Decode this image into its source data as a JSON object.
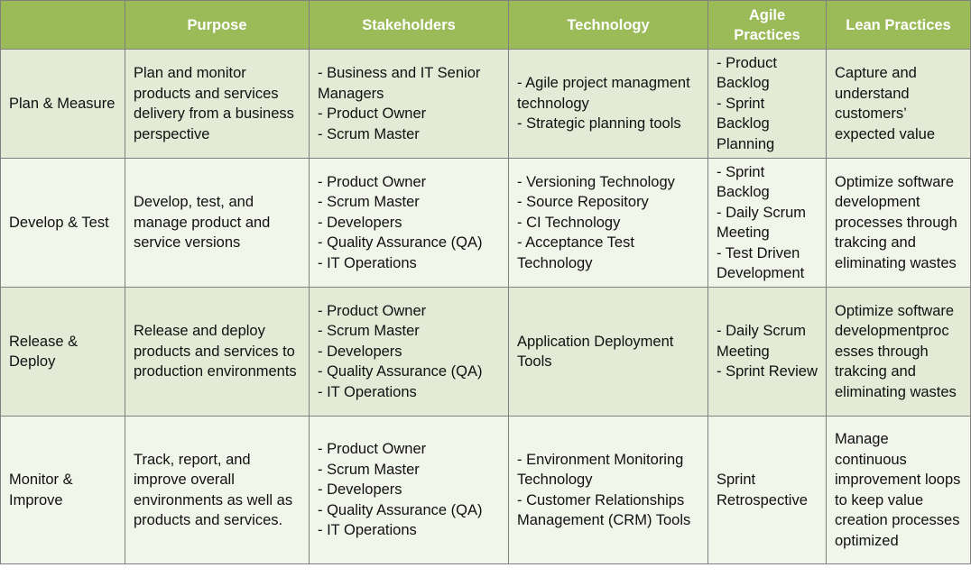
{
  "headers": [
    "",
    "Purpose",
    "Stakeholders",
    "Technology",
    "Agile Practices",
    "Lean Practices"
  ],
  "rows": [
    {
      "phase": "Plan & Measure",
      "purpose": "Plan and monitor products and services delivery from a business perspective",
      "stakeholders": [
        "- Business and IT Senior Managers",
        "- Product Owner",
        "- Scrum Master"
      ],
      "technology": [
        "- Agile project managment technology",
        "- Strategic planning tools"
      ],
      "agile": [
        "- Product Backlog",
        "- Sprint Backlog Planning"
      ],
      "lean": "Capture and understand customers’ expected value"
    },
    {
      "phase": "Develop & Test",
      "purpose": "Develop, test, and manage product and service versions",
      "stakeholders": [
        "- Product Owner",
        "- Scrum Master",
        "- Developers",
        "- Quality Assurance (QA)",
        "- IT Operations"
      ],
      "technology": [
        "- Versioning Technology",
        "- Source Repository",
        "- CI Technology",
        "- Acceptance Test Technology"
      ],
      "agile": [
        "- Sprint Backlog",
        "- Daily Scrum Meeting",
        "- Test Driven Development"
      ],
      "lean": "Optimize software development processes through trakcing and eliminating wastes"
    },
    {
      "phase": "Release & Deploy",
      "purpose": "Release and deploy products and services to production environments",
      "stakeholders": [
        "- Product Owner",
        "- Scrum Master",
        "- Developers",
        "- Quality Assurance (QA)",
        "- IT Operations"
      ],
      "technology": [
        "Application Deployment Tools"
      ],
      "agile": [
        "- Daily Scrum Meeting",
        "- Sprint Review"
      ],
      "lean": "Optimize software developmentproc esses through trakcing and eliminating wastes"
    },
    {
      "phase": "Monitor & Improve",
      "purpose": "Track, report, and improve overall environments as well as products and services.",
      "stakeholders": [
        "- Product Owner",
        "- Scrum Master",
        "- Developers",
        "- Quality Assurance (QA)",
        "- IT Operations"
      ],
      "technology": [
        "- Environment Monitoring Technology",
        "- Customer Relationships Management (CRM) Tools"
      ],
      "agile": [
        "Sprint Retrospective"
      ],
      "lean": "Manage continuous improvement loops to keep value creation processes optimized"
    }
  ]
}
